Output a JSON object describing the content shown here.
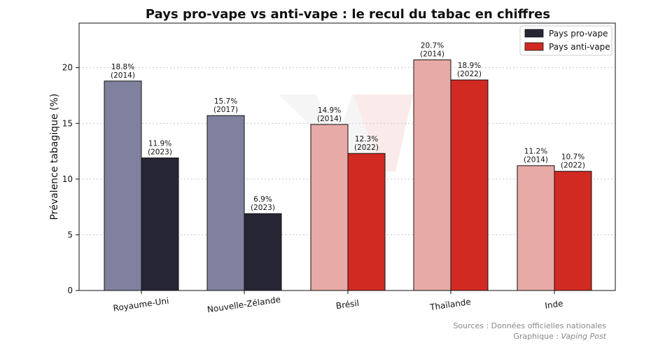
{
  "chart_data": {
    "type": "bar",
    "title": "Pays pro-vape vs anti-vape : le recul du tabac en chiffres",
    "xlabel": "",
    "ylabel": "Prévalence tabagique (%)",
    "ylim": [
      0,
      24
    ],
    "yticks": [
      "0",
      "5",
      "10",
      "15",
      "20"
    ],
    "grid": "horizontal dotted",
    "legend_position": "top-right",
    "legend": [
      {
        "label": "Pays pro-vape",
        "color": "#262634"
      },
      {
        "label": "Pays anti-vape",
        "color": "#d12a22"
      }
    ],
    "categories": [
      {
        "name": "Royaume-Uni",
        "group": "pro-vape",
        "bars": [
          {
            "value": 18.8,
            "label": "18.8%",
            "year": "(2014)",
            "color": "#7f819e"
          },
          {
            "value": 11.9,
            "label": "11.9%",
            "year": "(2023)",
            "color": "#262634"
          }
        ]
      },
      {
        "name": "Nouvelle-Zélande",
        "group": "pro-vape",
        "bars": [
          {
            "value": 15.7,
            "label": "15.7%",
            "year": "(2017)",
            "color": "#7f819e"
          },
          {
            "value": 6.9,
            "label": "6.9%",
            "year": "(2023)",
            "color": "#262634"
          }
        ]
      },
      {
        "name": "Brésil",
        "group": "anti-vape",
        "bars": [
          {
            "value": 14.9,
            "label": "14.9%",
            "year": "(2014)",
            "color": "#e8aaa6"
          },
          {
            "value": 12.3,
            "label": "12.3%",
            "year": "(2022)",
            "color": "#d12a22"
          }
        ]
      },
      {
        "name": "Thaïlande",
        "group": "anti-vape",
        "bars": [
          {
            "value": 20.7,
            "label": "20.7%",
            "year": "(2014)",
            "color": "#e8aaa6"
          },
          {
            "value": 18.9,
            "label": "18.9%",
            "year": "(2022)",
            "color": "#d12a22"
          }
        ]
      },
      {
        "name": "Inde",
        "group": "anti-vape",
        "bars": [
          {
            "value": 11.2,
            "label": "11.2%",
            "year": "(2014)",
            "color": "#e8aaa6"
          },
          {
            "value": 10.7,
            "label": "10.7%",
            "year": "(2022)",
            "color": "#d12a22"
          }
        ]
      }
    ]
  },
  "footer": {
    "sources": "Sources : Données officielles nationales",
    "graphic_prefix": "Graphique : ",
    "graphic_name": "Vaping Post"
  },
  "watermark": {
    "letter": "V",
    "color": "#d12a22"
  }
}
